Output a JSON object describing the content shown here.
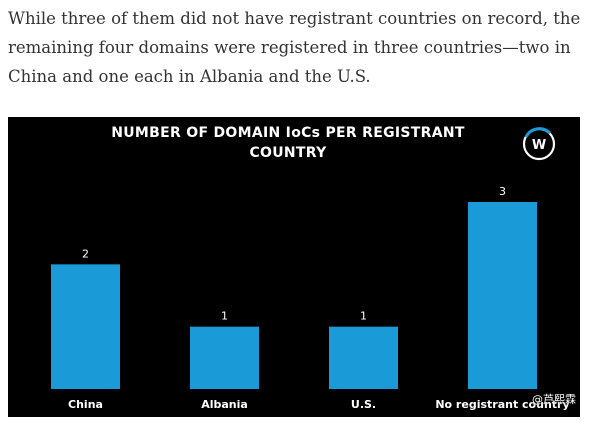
{
  "article": {
    "paragraph": "While three of them did not have registrant countries on record, the remaining four domains were registered in three countries—two in China and one each in Albania and the U.S."
  },
  "chart_data": {
    "type": "bar",
    "title": "NUMBER OF DOMAIN IoCs PER REGISTRANT COUNTRY",
    "categories": [
      "China",
      "Albania",
      "U.S.",
      "No registrant country"
    ],
    "values": [
      2,
      1,
      1,
      3
    ],
    "data_labels": [
      "2",
      "1",
      "1",
      "3"
    ],
    "xlabel": "",
    "ylabel": "",
    "ylim": [
      0,
      3
    ],
    "grid": false,
    "legend": "none",
    "bar_color": "#1a9ad7",
    "background": "#000000"
  },
  "logo": {
    "icon": "w-globe-logo-icon",
    "letter": "W"
  },
  "watermark": {
    "text": "@芦熙霖"
  }
}
